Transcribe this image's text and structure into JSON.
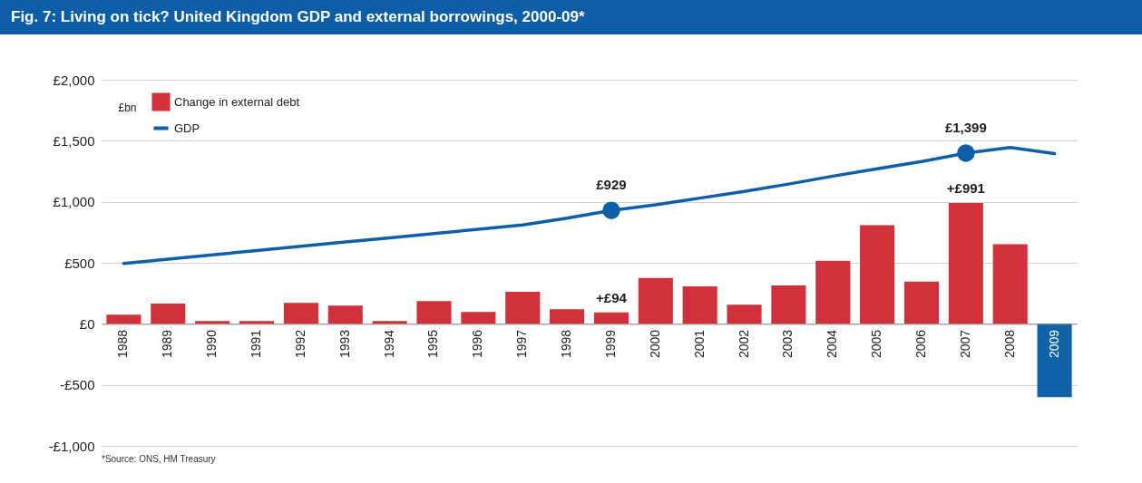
{
  "chart_data": {
    "type": "bar",
    "title": "Fig. 7: Living on tick? United Kingdom GDP and external borrowings, 2000-09*",
    "ylabel": "£bn",
    "annotations": [
      "*Source: ONS, HM Treasury"
    ],
    "categories": [
      "1988",
      "1989",
      "1990",
      "1991",
      "1992",
      "1993",
      "1994",
      "1995",
      "1996",
      "1997",
      "1998",
      "1999",
      "2000",
      "2001",
      "2002",
      "2003",
      "2004",
      "2005",
      "2006",
      "2007",
      "2008",
      "2009"
    ],
    "series": [
      {
        "name": "Change in external debt",
        "color": "#d1313a",
        "colors": [
          "#d1313a",
          "#d1313a",
          "#d1313a",
          "#d1313a",
          "#d1313a",
          "#d1313a",
          "#d1313a",
          "#d1313a",
          "#d1313a",
          "#d1313a",
          "#d1313a",
          "#d1313a",
          "#d1313a",
          "#d1313a",
          "#d1313a",
          "#d1313a",
          "#d1313a",
          "#d1313a",
          "#d1313a",
          "#d1313a",
          "#d1313a",
          "#0f62a8"
        ],
        "values": [
          75,
          165,
          22,
          22,
          172,
          150,
          22,
          187,
          97,
          262,
          120,
          94,
          375,
          307,
          157,
          315,
          517,
          809,
          345,
          991,
          652,
          -600
        ],
        "value_labels": [
          null,
          null,
          null,
          null,
          null,
          null,
          null,
          null,
          null,
          null,
          null,
          "+£94",
          null,
          null,
          null,
          null,
          null,
          null,
          null,
          "+£991",
          null,
          null
        ]
      },
      {
        "name": "GDP",
        "type": "line",
        "color": "#0f5fa8",
        "values": [
          495,
          530,
          565,
          600,
          635,
          670,
          705,
          740,
          775,
          810,
          865,
          929,
          975,
          1030,
          1085,
          1145,
          1210,
          1270,
          1330,
          1399,
          1445,
          1395
        ]
      },
      {
        "type": "scatter",
        "color": "#0f5fa8",
        "values": [
          null,
          null,
          null,
          null,
          null,
          null,
          null,
          null,
          null,
          null,
          null,
          929,
          null,
          null,
          null,
          null,
          null,
          null,
          null,
          1399,
          null,
          null
        ],
        "value_labels": [
          null,
          null,
          null,
          null,
          null,
          null,
          null,
          null,
          null,
          null,
          null,
          "£929",
          null,
          null,
          null,
          null,
          null,
          null,
          null,
          "£1,399",
          null,
          null
        ]
      }
    ],
    "ylim": [
      -1000,
      2000
    ],
    "yticks": [
      {
        "value": -1000,
        "label": "-£1,000"
      },
      {
        "value": -500,
        "label": "-£500"
      },
      {
        "value": 0,
        "label": "£0"
      },
      {
        "value": 500,
        "label": "£500"
      },
      {
        "value": 1000,
        "label": "£1,000"
      },
      {
        "value": 1500,
        "label": "£1,500"
      },
      {
        "value": 2000,
        "label": "£2,000"
      }
    ],
    "grid": "y",
    "legend": "top left"
  }
}
